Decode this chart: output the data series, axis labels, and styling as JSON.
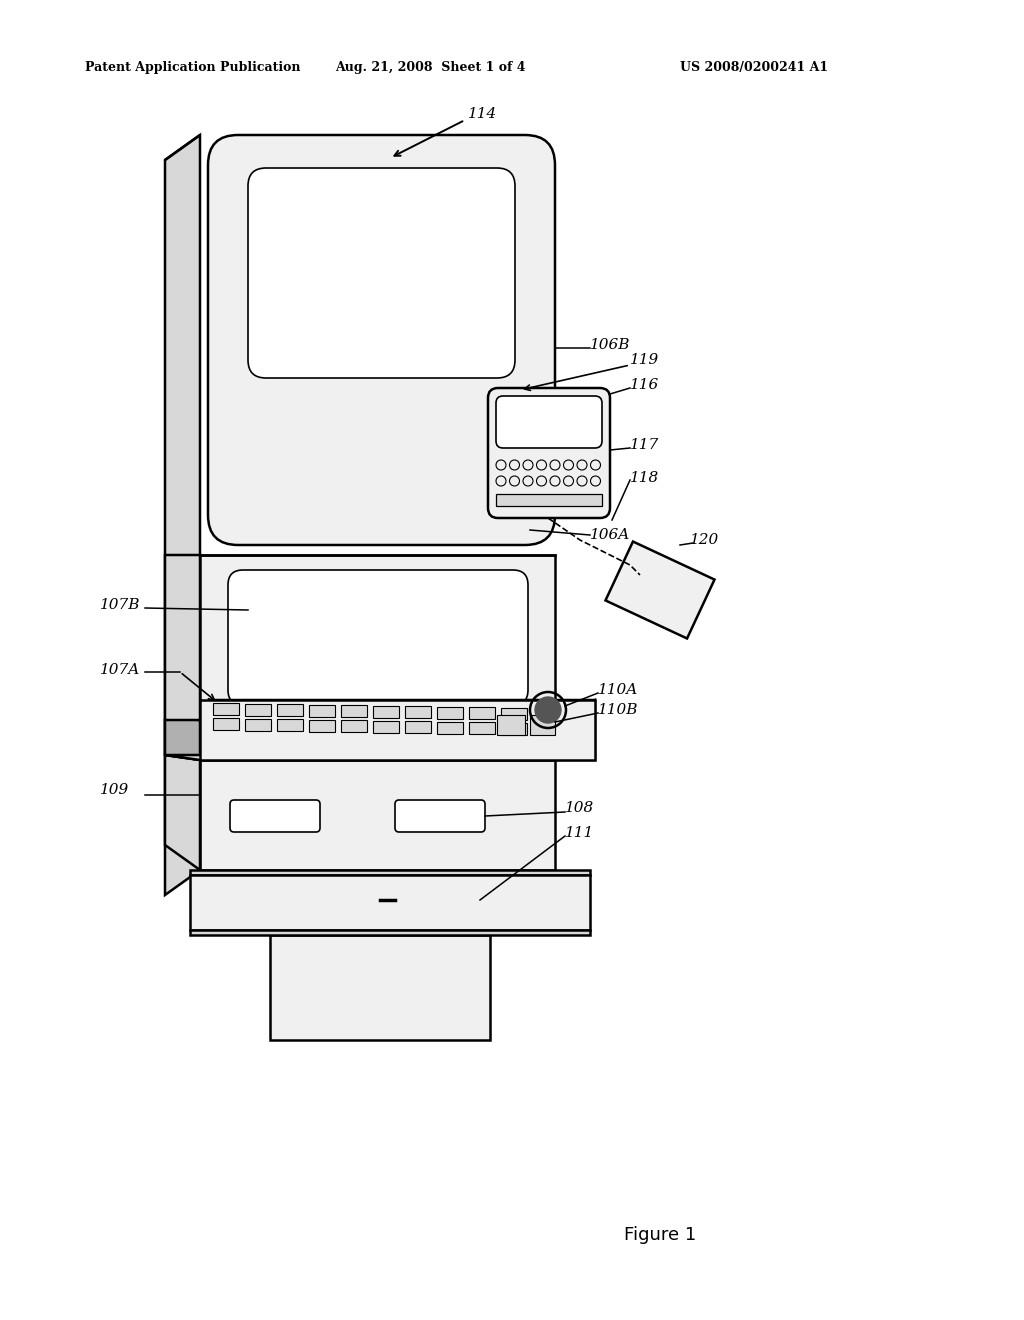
{
  "background_color": "#ffffff",
  "header_left": "Patent Application Publication",
  "header_mid": "Aug. 21, 2008  Sheet 1 of 4",
  "header_right": "US 2008/0200241 A1",
  "figure_label": "Figure 1",
  "line_color": "#000000",
  "fill_light": "#f0f0f0",
  "fill_mid": "#d8d8d8",
  "fill_dark": "#b0b0b0"
}
